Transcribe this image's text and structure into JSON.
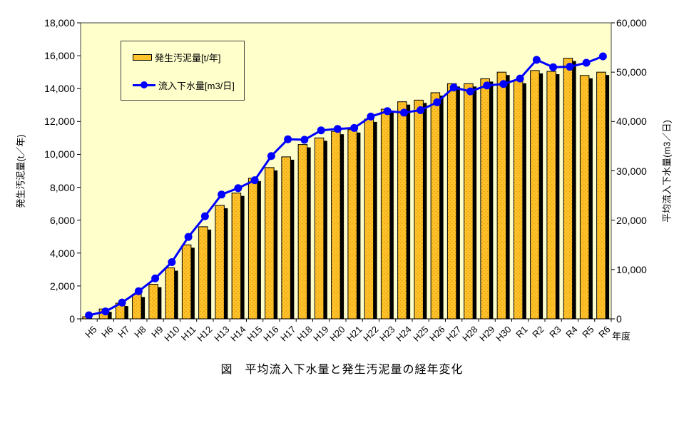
{
  "figure": {
    "caption": "図　平均流入下水量と発生汚泥量の経年変化"
  },
  "axes": {
    "x_title": "年度",
    "left_title": "発生汚泥量(t／年)",
    "right_title": "平均流入下水量(m3／日)",
    "left_tick_labels": [
      "0",
      "2,000",
      "4,000",
      "6,000",
      "8,000",
      "10,000",
      "12,000",
      "14,000",
      "16,000",
      "18,000"
    ],
    "right_tick_labels": [
      "0",
      "10,000",
      "20,000",
      "30,000",
      "40,000",
      "50,000",
      "60,000"
    ]
  },
  "legend": {
    "bar_entry": "発生汚泥量[t/年]",
    "line_entry": "流入下水量[m3/日]"
  },
  "colors": {
    "plot_background": "#ffffcc",
    "bar_fill": "#ffc32b",
    "bar_dot": "#d98b00",
    "bar_border": "#000000",
    "bar_shadow": "#000000",
    "line": "#0000ff",
    "marker": "#0000ff",
    "axis": "#404040",
    "text": "#000000"
  },
  "chart_data": {
    "type": "bar",
    "subtype": "combo-bar-line-dual-axis",
    "title": "図　平均流入下水量と発生汚泥量の経年変化",
    "xlabel": "年度",
    "ylabel_left": "発生汚泥量(t／年)",
    "ylabel_right": "平均流入下水量(m3／日)",
    "ylim_left": [
      0,
      18000
    ],
    "ylim_right": [
      0,
      60000
    ],
    "ytick_step_left": 2000,
    "ytick_step_right": 10000,
    "grid": false,
    "legend_position": "inside-top-left",
    "categories": [
      "H5",
      "H6",
      "H7",
      "H8",
      "H9",
      "H10",
      "H11",
      "H12",
      "H13",
      "H14",
      "H15",
      "H16",
      "H17",
      "H18",
      "H19",
      "H20",
      "H21",
      "H22",
      "H23",
      "H24",
      "H25",
      "H26",
      "H27",
      "H28",
      "H29",
      "H30",
      "R1",
      "R2",
      "R3",
      "R4",
      "R5",
      "R6"
    ],
    "series": [
      {
        "name": "発生汚泥量[t/年]",
        "type": "bar",
        "axis": "left",
        "unit": "t/年",
        "values": [
          130,
          600,
          950,
          1500,
          2100,
          3100,
          4500,
          5600,
          6900,
          7650,
          8550,
          9200,
          9850,
          10600,
          11000,
          11400,
          11500,
          12150,
          12750,
          13200,
          13300,
          13750,
          14300,
          14300,
          14600,
          15000,
          14500,
          15100,
          15050,
          15850,
          14800,
          15000
        ]
      },
      {
        "name": "流入下水量[m3/日]",
        "type": "line",
        "axis": "right",
        "unit": "m3/日",
        "values": [
          720,
          1500,
          3300,
          5600,
          8200,
          11500,
          16600,
          20800,
          25200,
          26500,
          28100,
          33000,
          36400,
          36300,
          38200,
          38500,
          38700,
          41000,
          42100,
          41800,
          42300,
          43900,
          46900,
          46100,
          47300,
          47600,
          48700,
          52500,
          51000,
          51100,
          51900,
          53200
        ]
      }
    ]
  }
}
